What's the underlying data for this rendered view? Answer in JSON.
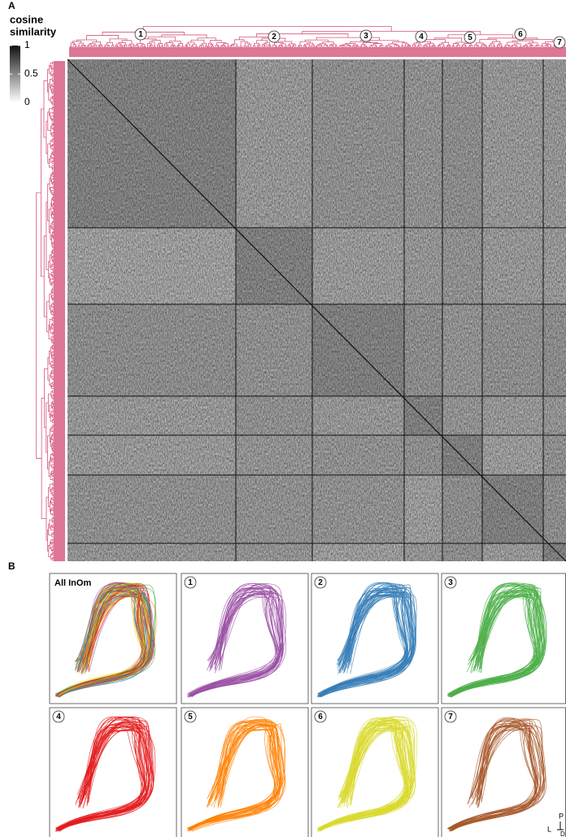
{
  "panel_a": {
    "label": "A",
    "colorbar": {
      "title_lines": [
        "cosine",
        "similarity"
      ],
      "ticks": [
        1,
        0.5,
        0
      ]
    },
    "clusters": [
      "1",
      "2",
      "3",
      "4",
      "5",
      "6",
      "7"
    ],
    "dendrogram_color": "#d6547a"
  },
  "panel_b": {
    "label": "B",
    "panels": [
      {
        "label": "All InOm",
        "colors": [
          "#984ea3",
          "#377eb8",
          "#4daf4a",
          "#e41a1c",
          "#ff7f00",
          "#e2e23a",
          "#a65628"
        ]
      },
      {
        "label": "1",
        "color": "#984ea3"
      },
      {
        "label": "2",
        "color": "#377eb8"
      },
      {
        "label": "3",
        "color": "#4daf4a"
      },
      {
        "label": "4",
        "color": "#e41a1c"
      },
      {
        "label": "5",
        "color": "#ff7f00"
      },
      {
        "label": "6",
        "color": "#d9d92e"
      },
      {
        "label": "7",
        "color": "#a65628"
      }
    ]
  },
  "compass": {
    "up": "P",
    "left": "L",
    "down": "D"
  }
}
